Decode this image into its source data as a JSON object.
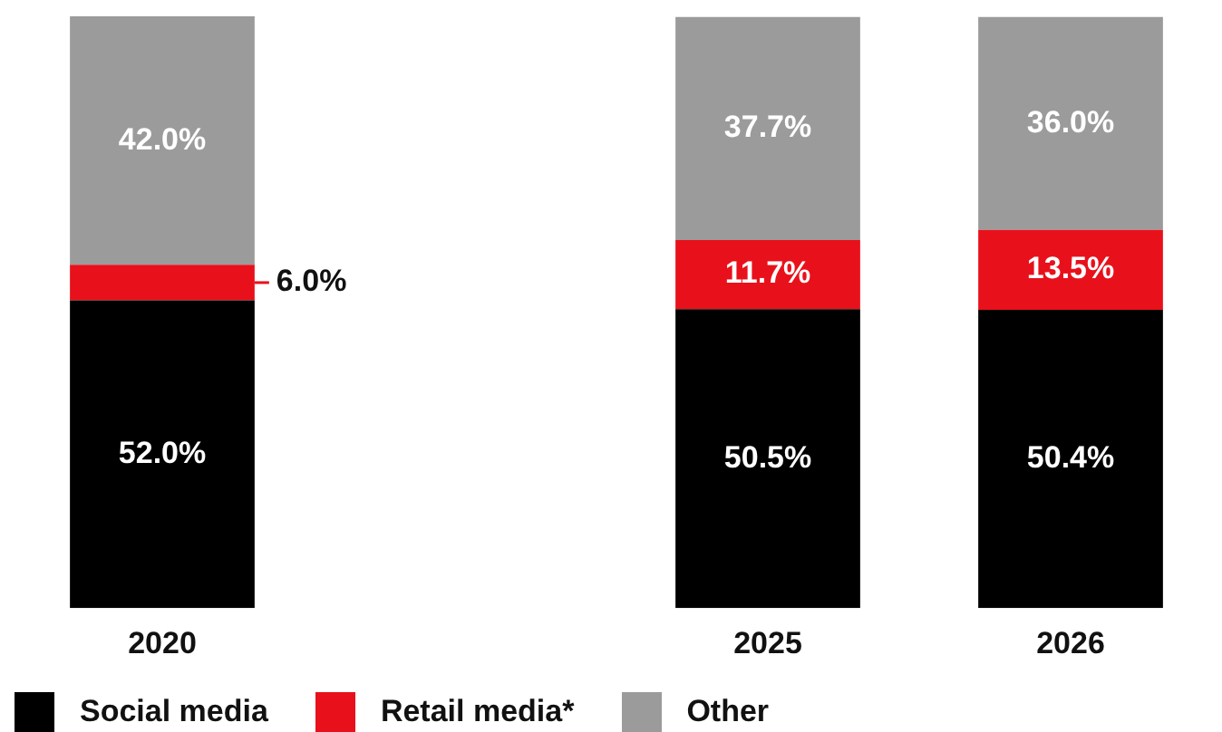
{
  "chart_data": {
    "type": "bar",
    "stacked": true,
    "legend": "bottom left",
    "tick_labels": "x",
    "categories": [
      "2020",
      null,
      "2025",
      "2026"
    ],
    "series": [
      {
        "name": "Social media",
        "color": "#000000",
        "values": [
          52.0,
          null,
          50.5,
          50.4
        ],
        "value_labels": [
          "52.0%",
          null,
          "50.5%",
          "50.4%"
        ]
      },
      {
        "name": "Retail media*",
        "color": "#e8111b",
        "values": [
          6.0,
          null,
          11.7,
          13.5
        ],
        "value_labels": [
          "6.0%",
          null,
          "11.7%",
          "13.5%"
        ]
      },
      {
        "name": "Other",
        "color": "#9b9b9b",
        "values": [
          42.0,
          null,
          37.7,
          36.0
        ],
        "value_labels": [
          "42.0%",
          null,
          "37.7%",
          "36.0%"
        ]
      }
    ]
  }
}
